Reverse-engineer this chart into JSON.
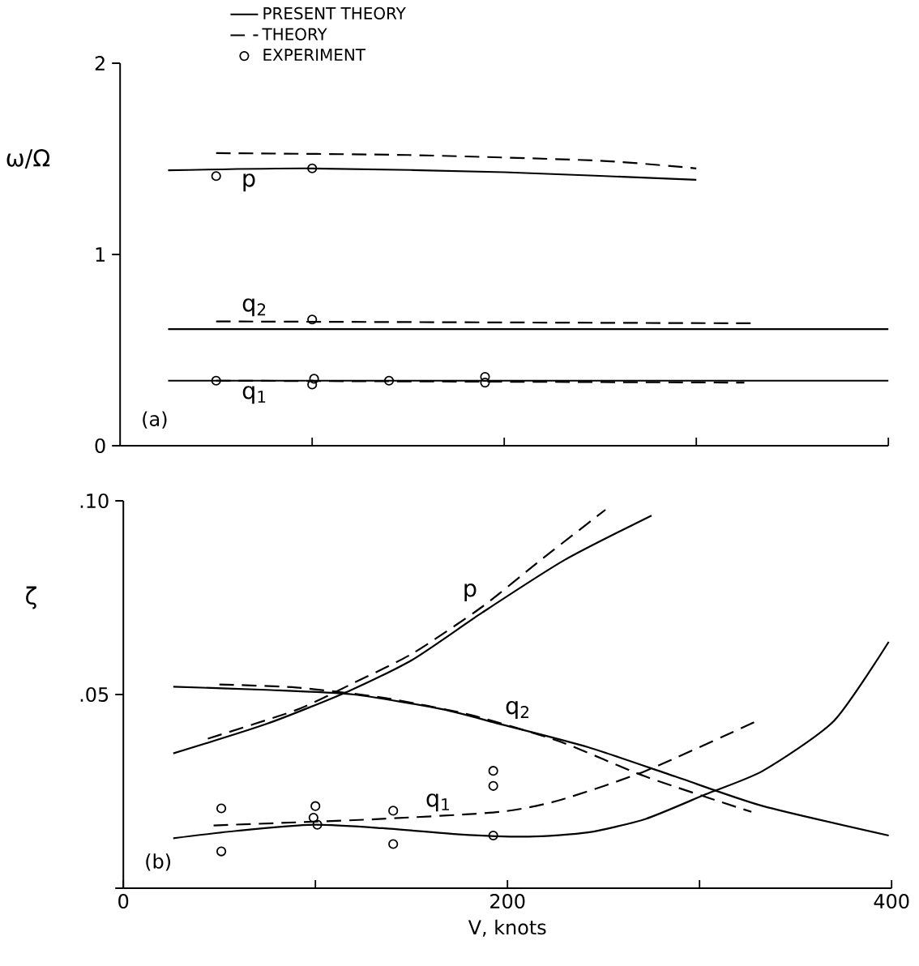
{
  "chart_data": [
    {
      "type": "line",
      "ylabel": "ω/Ω",
      "xlim": [
        0,
        400
      ],
      "ylim": [
        0,
        2
      ],
      "xticks": [
        {
          "value": 100,
          "label": null
        },
        {
          "value": 200,
          "label": null
        },
        {
          "value": 300,
          "label": null
        },
        {
          "value": 400,
          "label": null
        }
      ],
      "yticks": [
        0,
        1,
        2
      ],
      "tick_labels": "y",
      "legend": "top",
      "series": [
        {
          "name": "PRESENT THEORY",
          "line_style": "solid",
          "color": "#000000",
          "x": [
            25,
            100,
            200,
            300
          ],
          "values": [
            1.44,
            1.45,
            1.43,
            1.39
          ]
        },
        {
          "name": "THEORY",
          "line_style": "dashed",
          "color": "#000000",
          "x": [
            50,
            150,
            250,
            300
          ],
          "values": [
            1.53,
            1.52,
            1.49,
            1.45
          ]
        },
        {
          "name": "EXPERIMENT",
          "type": "scatter",
          "marker": "circle",
          "color": "#000000",
          "x": [
            50,
            100,
            100,
            50,
            100,
            101,
            140,
            190,
            190
          ],
          "values": [
            1.41,
            1.45,
            0.66,
            0.34,
            0.32,
            0.35,
            0.34,
            0.36,
            0.33
          ]
        },
        {
          "line_style": "solid",
          "color": "#000000",
          "x": [
            25,
            400
          ],
          "values": [
            0.61,
            0.61
          ]
        },
        {
          "line_style": "dashed",
          "color": "#000000",
          "x": [
            50,
            330
          ],
          "values": [
            0.65,
            0.64
          ]
        },
        {
          "line_style": "solid",
          "color": "#000000",
          "x": [
            25,
            400
          ],
          "values": [
            0.34,
            0.34
          ]
        },
        {
          "line_style": "dashed",
          "color": "#000000",
          "x": [
            50,
            325
          ],
          "values": [
            0.34,
            0.33
          ]
        }
      ],
      "annotations": [
        {
          "text": "p",
          "x": 67,
          "y": 1.45
        },
        {
          "text": "q$_{2}$",
          "x": 70,
          "y": 0.65
        },
        {
          "text": "q$_{1}$",
          "x": 70,
          "y": 0.34
        },
        "(a)"
      ]
    },
    {
      "type": "line",
      "ylabel": "ζ",
      "xlabel": "V, knots",
      "xlim": [
        0,
        400
      ],
      "ylim": [
        0,
        0.1
      ],
      "xticks": [
        0,
        {
          "value": 100,
          "label": null
        },
        200,
        {
          "value": 300,
          "label": null
        },
        400
      ],
      "yticks": [
        {
          "value": 0,
          "label": null
        },
        {
          "value": 0.05,
          "label": ".05"
        },
        {
          "value": 0.1,
          "label": ".10"
        }
      ],
      "series": [
        {
          "line_style": "solid",
          "color": "#000000",
          "x": [
            26,
            74.5,
            117,
            150.6,
            187,
            230,
            275
          ],
          "values": [
            0.0348,
            0.0424,
            0.0508,
            0.059,
            0.0712,
            0.0848,
            0.0962
          ]
        },
        {
          "line_style": "dashed",
          "color": "#000000",
          "x": [
            44,
            90,
            120,
            150.6,
            187,
            217.5,
            251
          ],
          "values": [
            0.0386,
            0.046,
            0.053,
            0.0606,
            0.0727,
            0.0848,
            0.0977
          ]
        },
        {
          "line_style": "solid",
          "color": "#000000",
          "x": [
            26,
            74.5,
            120,
            166,
            196,
            242,
            287.5,
            333,
            398.5
          ],
          "values": [
            0.052,
            0.0512,
            0.05,
            0.0462,
            0.0424,
            0.0364,
            0.0288,
            0.0212,
            0.0136
          ]
        },
        {
          "line_style": "dashed",
          "color": "#000000",
          "x": [
            50,
            90,
            135,
            181,
            227,
            272,
            327
          ],
          "values": [
            0.0526,
            0.0518,
            0.0492,
            0.0447,
            0.0379,
            0.0288,
            0.0197
          ]
        },
        {
          "line_style": "dashed",
          "color": "#000000",
          "x": [
            47,
            90,
            135,
            196,
            227,
            272,
            330
          ],
          "values": [
            0.0162,
            0.017,
            0.0179,
            0.0197,
            0.0227,
            0.0303,
            0.0432
          ]
        },
        {
          "line_style": "solid",
          "color": "#000000",
          "x": [
            26,
            59,
            99,
            135,
            175,
            211,
            242,
            272,
            303,
            333,
            370,
            398.5
          ],
          "values": [
            0.0129,
            0.0148,
            0.0164,
            0.0155,
            0.0139,
            0.0133,
            0.0144,
            0.0179,
            0.0242,
            0.0303,
            0.0432,
            0.0636
          ]
        },
        {
          "type": "scatter",
          "marker": "circle",
          "color": "#000000",
          "x": [
            51,
            51,
            100,
            99,
            101,
            140.5,
            140.5,
            192.6,
            192.6,
            192.6
          ],
          "values": [
            0.0206,
            0.0095,
            0.0212,
            0.0182,
            0.0164,
            0.02,
            0.0114,
            0.0303,
            0.0264,
            0.0136
          ]
        }
      ],
      "annotations": [
        {
          "text": "p",
          "x": 187,
          "y": 0.0727
        },
        {
          "text": "q$_{2}$",
          "x": 196,
          "y": 0.0424
        },
        {
          "text": "q$_{1}$",
          "x": 164,
          "y": 0.0185
        },
        "(b)"
      ]
    }
  ]
}
